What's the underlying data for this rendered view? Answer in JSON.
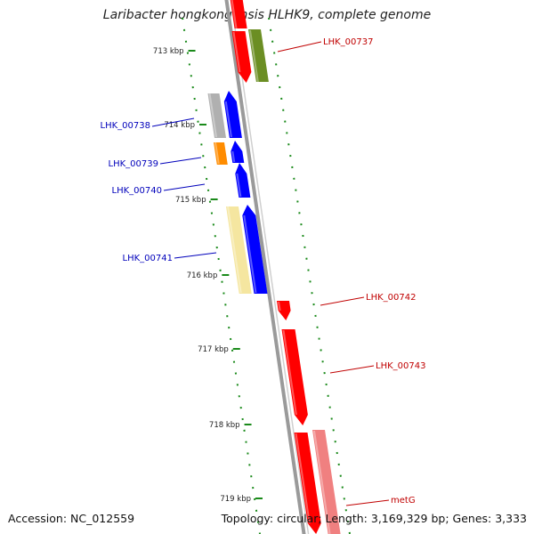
{
  "title": "Laribacter hongkongensis HLHK9, complete genome",
  "footer": {
    "accession": "Accession: NC_012559",
    "topology": "Topology: circular; Length: 3,169,329 bp; Genes: 3,333"
  },
  "colors": {
    "backbone": "#8c8c8c",
    "ticks": "#1a8a1a",
    "forward_label": "#c00000",
    "reverse_label": "#0000bb",
    "red": "#ff0000",
    "blue": "#0000ff",
    "olive": "#6b8e23",
    "gray": "#b0b0b0",
    "orange": "#ff8c00",
    "yellow": "#f5e6a0",
    "pink": "#f08080"
  },
  "ticks": [
    {
      "label": "713 kbp"
    },
    {
      "label": "714 kbp"
    },
    {
      "label": "715 kbp"
    },
    {
      "label": "716 kbp"
    },
    {
      "label": "717 kbp"
    },
    {
      "label": "718 kbp"
    },
    {
      "label": "719 kbp"
    }
  ],
  "labels": [
    {
      "text": "LHK_00737",
      "strand": "forward"
    },
    {
      "text": "LHK_00738",
      "strand": "reverse"
    },
    {
      "text": "LHK_00739",
      "strand": "reverse"
    },
    {
      "text": "LHK_00740",
      "strand": "reverse"
    },
    {
      "text": "LHK_00741",
      "strand": "reverse"
    },
    {
      "text": "LHK_00742",
      "strand": "forward"
    },
    {
      "text": "LHK_00743",
      "strand": "forward"
    },
    {
      "text": "metG",
      "strand": "forward"
    }
  ]
}
